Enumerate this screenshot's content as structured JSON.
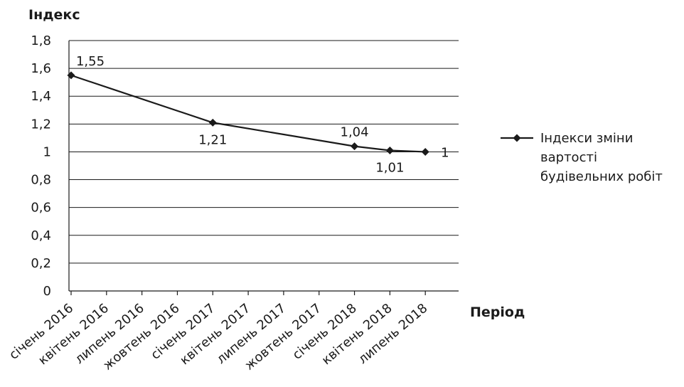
{
  "chart_data": {
    "type": "line",
    "ylabel": "Індекс",
    "xlabel": "Період",
    "ylim": [
      0,
      1.8
    ],
    "y_ticks": [
      "0",
      "0,2",
      "0,4",
      "0,6",
      "0,8",
      "1",
      "1,2",
      "1,4",
      "1,6",
      "1,8"
    ],
    "y_tick_values": [
      0,
      0.2,
      0.4,
      0.6,
      0.8,
      1.0,
      1.2,
      1.4,
      1.6,
      1.8
    ],
    "categories": [
      "січень 2016",
      "квітень 2016",
      "липень 2016",
      "жовтень 2016",
      "січень 2017",
      "квітень 2017",
      "липень 2017",
      "жовтень 2017",
      "січень 2018",
      "квітень 2018",
      "липень 2018"
    ],
    "grid": "horizontal",
    "legend_position": "right",
    "series": [
      {
        "name": "Індекси зміни вартості будівельних робіт",
        "legend_lines": [
          "Індекси зміни",
          "вартості",
          "будівельних робіт"
        ],
        "color": "#1a1a1a",
        "marker": "diamond",
        "points": [
          {
            "x": "січень 2016",
            "y": 1.55,
            "label": "1,55",
            "label_pos": "above"
          },
          {
            "x": "січень 2017",
            "y": 1.21,
            "label": "1,21",
            "label_pos": "below"
          },
          {
            "x": "січень 2018",
            "y": 1.04,
            "label": "1,04",
            "label_pos": "above"
          },
          {
            "x": "квітень 2018",
            "y": 1.01,
            "label": "1,01",
            "label_pos": "below"
          },
          {
            "x": "липень 2018",
            "y": 1.0,
            "label": "1",
            "label_pos": "right"
          }
        ]
      }
    ]
  }
}
